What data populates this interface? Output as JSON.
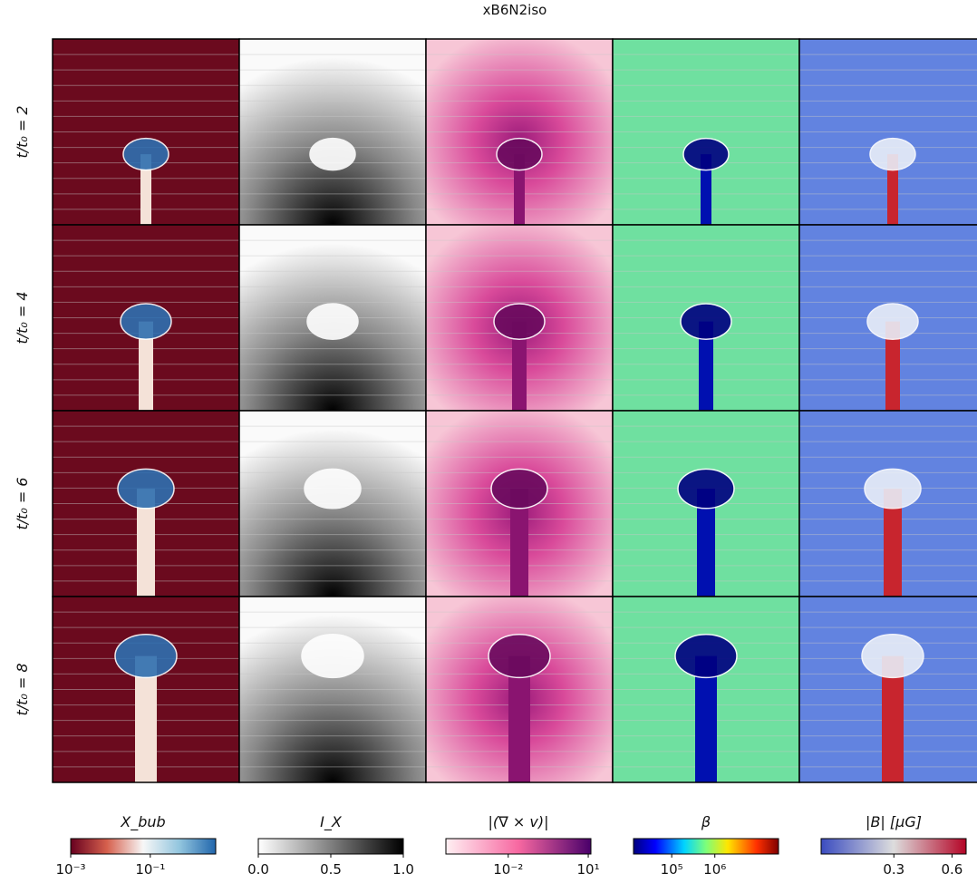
{
  "title": "xB6N2iso",
  "rows": [
    "t/t₀ = 2",
    "t/t₀ = 4",
    "t/t₀ = 6",
    "t/t₀ = 8"
  ],
  "colorbars": [
    {
      "label": "X_bub",
      "log": true,
      "lim": [
        0.001,
        4.4
      ],
      "ticks": [
        {
          "value": 0.001,
          "label": "10⁻³"
        },
        {
          "value": 0.1,
          "label": "10⁻¹"
        }
      ]
    },
    {
      "label": "I_X",
      "log": false,
      "lim": [
        0,
        1
      ],
      "ticks": [
        {
          "value": 0,
          "label": "0.0"
        },
        {
          "value": 0.5,
          "label": "0.5"
        },
        {
          "value": 1,
          "label": "1.0"
        }
      ]
    },
    {
      "label": "|(∇ × v)|",
      "log": true,
      "lim": [
        4.6e-05,
        12.6
      ],
      "ticks": [
        {
          "value": 0.01,
          "label": "10⁻²"
        },
        {
          "value": 10,
          "label": "10¹"
        }
      ]
    },
    {
      "label": "β",
      "log": true,
      "lim": [
        13000,
        30000000
      ],
      "ticks": [
        {
          "value": 100000,
          "label": "10⁵"
        },
        {
          "value": 1000000,
          "label": "10⁶"
        }
      ]
    },
    {
      "label": "|B| [μG]",
      "log": true,
      "lim": [
        0.126,
        0.71
      ],
      "ticks": [
        0.3,
        0.6
      ]
    }
  ]
}
